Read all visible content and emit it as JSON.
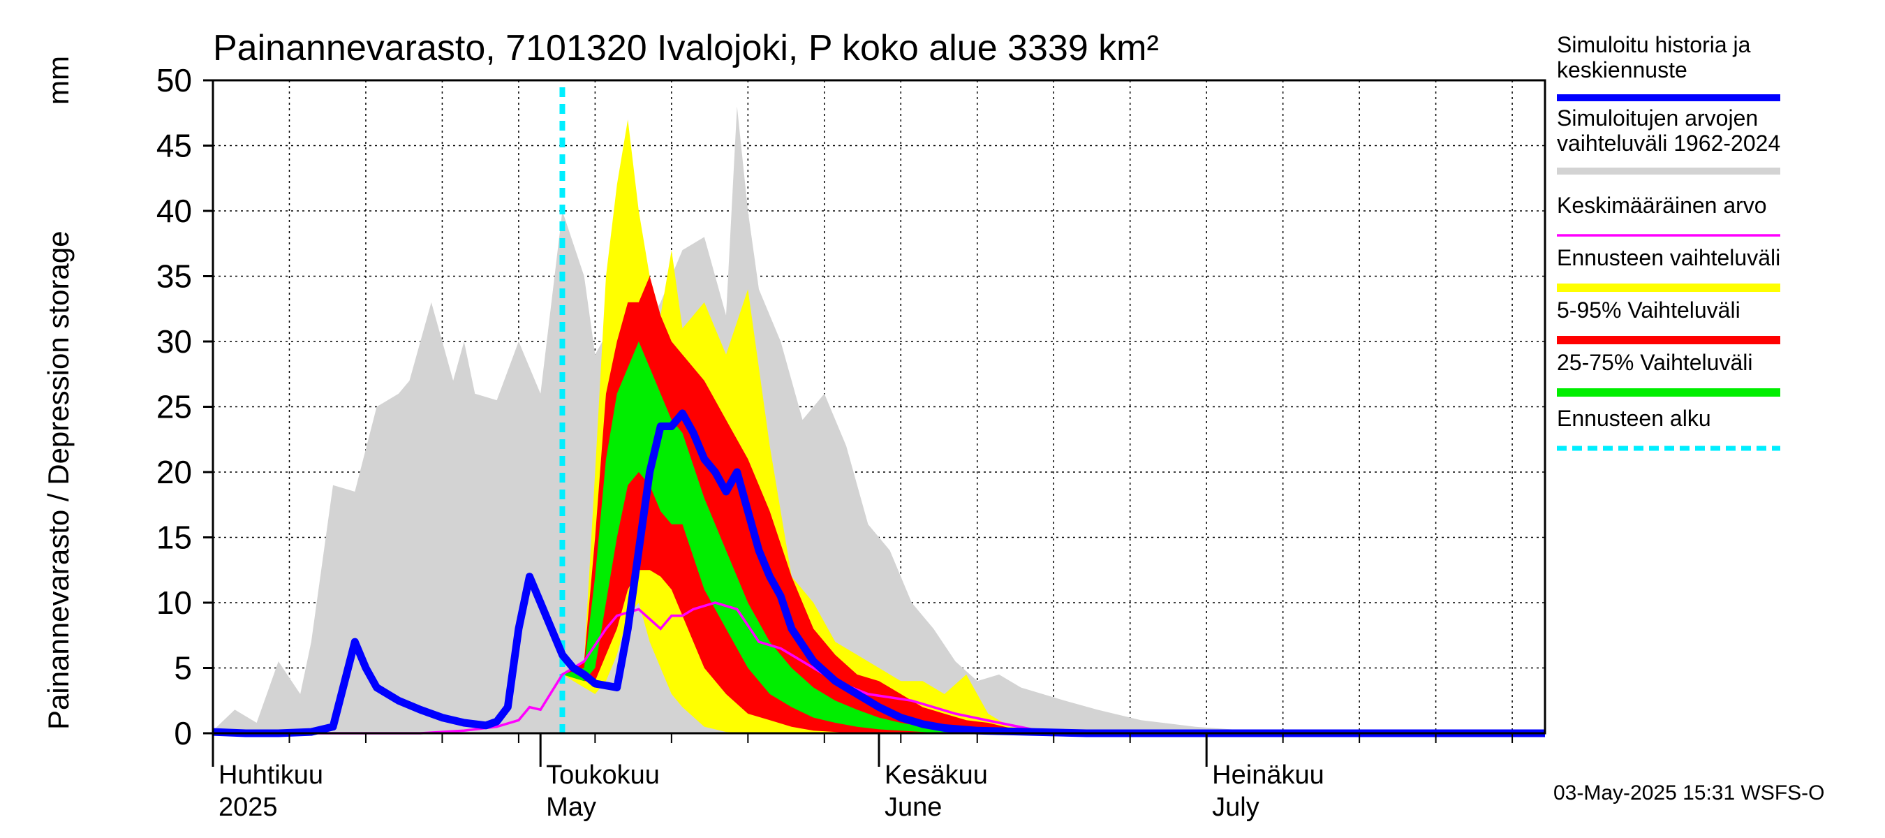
{
  "chart_data": {
    "type": "area",
    "title": "Painannevarasto, 7101320 Ivalojoki, P koko alue 3339 km²",
    "ylabel": "Painannevarasto / Depression storage",
    "yunit": "mm",
    "ylim": [
      0,
      50
    ],
    "yticks": [
      "0",
      "5",
      "10",
      "15",
      "20",
      "25",
      "30",
      "35",
      "40",
      "45",
      "50"
    ],
    "xlim": [
      "2025-04-01",
      "2025-08-01"
    ],
    "grid": true,
    "month_labels": [
      {
        "date": "2025-04-01",
        "line1": "Huhtikuu",
        "line2": "2025"
      },
      {
        "date": "2025-05-01",
        "line1": "Toukokuu",
        "line2": "May"
      },
      {
        "date": "2025-06-01",
        "line1": "Kesäkuu",
        "line2": "June"
      },
      {
        "date": "2025-07-01",
        "line1": "Heinäkuu",
        "line2": "July"
      }
    ],
    "forecast_start": "2025-05-03",
    "historical_range": {
      "x": [
        "2025-04-01",
        "2025-04-03",
        "2025-04-05",
        "2025-04-07",
        "2025-04-09",
        "2025-04-10",
        "2025-04-12",
        "2025-04-14",
        "2025-04-16",
        "2025-04-18",
        "2025-04-19",
        "2025-04-21",
        "2025-04-23",
        "2025-04-24",
        "2025-04-25",
        "2025-04-27",
        "2025-04-29",
        "2025-05-01",
        "2025-05-03",
        "2025-05-05",
        "2025-05-06",
        "2025-05-08",
        "2025-05-10",
        "2025-05-12",
        "2025-05-14",
        "2025-05-16",
        "2025-05-18",
        "2025-05-19",
        "2025-05-20",
        "2025-05-21",
        "2025-05-23",
        "2025-05-24",
        "2025-05-25",
        "2025-05-27",
        "2025-05-29",
        "2025-05-31",
        "2025-06-02",
        "2025-06-04",
        "2025-06-06",
        "2025-06-08",
        "2025-06-10",
        "2025-06-12",
        "2025-06-14",
        "2025-06-16",
        "2025-06-18",
        "2025-06-21",
        "2025-06-25",
        "2025-06-30",
        "2025-07-05",
        "2025-07-10",
        "2025-08-01"
      ],
      "high": [
        0.2,
        1.8,
        0.8,
        5.5,
        3.0,
        7.0,
        19.0,
        18.5,
        25.0,
        26.0,
        27.0,
        33.0,
        27.0,
        30.0,
        26.0,
        25.5,
        30.0,
        26.0,
        40.0,
        35.0,
        29.0,
        32.0,
        30.0,
        33.0,
        37.0,
        38.0,
        32.0,
        48.0,
        40.0,
        34.0,
        30.0,
        27.0,
        24.0,
        26.0,
        22.0,
        16.0,
        14.0,
        10.0,
        8.0,
        5.5,
        4.0,
        4.5,
        3.5,
        3.0,
        2.5,
        1.8,
        1.0,
        0.5,
        0.2,
        0.1,
        0.0
      ],
      "low": [
        0,
        0,
        0,
        0,
        0,
        0,
        0,
        0,
        0,
        0,
        0,
        0,
        0,
        0,
        0,
        0,
        0,
        0,
        0,
        0,
        0,
        0,
        0,
        0,
        0,
        0,
        0,
        0,
        0,
        0,
        0,
        0,
        0,
        0,
        0,
        0,
        0,
        0,
        0,
        0,
        0,
        0,
        0,
        0,
        0,
        0,
        0,
        0,
        0,
        0,
        0
      ]
    },
    "forecast_bands": {
      "x": [
        "2025-05-03",
        "2025-05-05",
        "2025-05-06",
        "2025-05-07",
        "2025-05-08",
        "2025-05-09",
        "2025-05-10",
        "2025-05-11",
        "2025-05-12",
        "2025-05-13",
        "2025-05-14",
        "2025-05-16",
        "2025-05-18",
        "2025-05-20",
        "2025-05-22",
        "2025-05-24",
        "2025-05-26",
        "2025-05-28",
        "2025-05-30",
        "2025-06-01",
        "2025-06-03",
        "2025-06-05",
        "2025-06-07",
        "2025-06-09",
        "2025-06-11",
        "2025-06-13",
        "2025-06-15",
        "2025-06-20",
        "2025-06-30",
        "2025-08-01"
      ],
      "band_min_max": {
        "upper": [
          4.5,
          5.5,
          20.0,
          35.0,
          42.0,
          47.0,
          40.0,
          35.0,
          32.0,
          37.0,
          31.0,
          33.0,
          29.0,
          34.0,
          22.0,
          12.0,
          10.0,
          7.0,
          6.0,
          5.0,
          4.0,
          4.0,
          3.0,
          4.5,
          1.5,
          0.5,
          0.3,
          0.1,
          0.0,
          0.0
        ],
        "lower": [
          4.5,
          3.5,
          3.0,
          4.0,
          6.0,
          9.0,
          10.0,
          7.0,
          5.0,
          3.0,
          2.0,
          0.5,
          0.1,
          0,
          0,
          0,
          0,
          0,
          0,
          0,
          0,
          0,
          0,
          0,
          0,
          0,
          0,
          0,
          0,
          0
        ]
      },
      "band_5_95": {
        "upper": [
          4.5,
          5.5,
          15.0,
          26.0,
          30.0,
          33.0,
          33.0,
          35.0,
          32.0,
          30.0,
          29.0,
          27.0,
          24.0,
          21.0,
          17.0,
          12.0,
          8.0,
          6.0,
          4.5,
          4.0,
          3.0,
          2.0,
          1.5,
          1.0,
          0.8,
          0.4,
          0.2,
          0.0,
          0.0,
          0.0
        ],
        "lower": [
          4.5,
          4.0,
          4.0,
          6.0,
          8.0,
          11.0,
          12.5,
          12.5,
          12.0,
          11.0,
          9.0,
          5.0,
          3.0,
          1.5,
          1.0,
          0.5,
          0.2,
          0.1,
          0,
          0,
          0,
          0,
          0,
          0,
          0,
          0,
          0,
          0,
          0,
          0
        ]
      },
      "band_25_75": {
        "upper": [
          4.5,
          5.0,
          12.0,
          21.0,
          26.0,
          28.0,
          30.0,
          28.0,
          26.0,
          24.0,
          23.0,
          18.0,
          14.0,
          10.0,
          7.0,
          5.0,
          3.5,
          2.5,
          1.8,
          1.2,
          0.8,
          0.5,
          0.2,
          0.1,
          0,
          0,
          0,
          0,
          0,
          0
        ],
        "lower": [
          4.5,
          4.0,
          5.0,
          10.0,
          15.0,
          19.0,
          20.0,
          19.0,
          17.0,
          16.0,
          16.0,
          11.0,
          8.0,
          5.0,
          3.0,
          2.0,
          1.2,
          0.8,
          0.5,
          0.3,
          0.2,
          0.1,
          0,
          0,
          0,
          0,
          0,
          0,
          0,
          0
        ]
      }
    },
    "series": [
      {
        "name": "Simuloitu historia ja keskiennuste",
        "color": "#0000ff",
        "x": [
          "2025-04-01",
          "2025-04-04",
          "2025-04-07",
          "2025-04-10",
          "2025-04-12",
          "2025-04-14",
          "2025-04-15",
          "2025-04-16",
          "2025-04-18",
          "2025-04-20",
          "2025-04-22",
          "2025-04-24",
          "2025-04-26",
          "2025-04-27",
          "2025-04-28",
          "2025-04-29",
          "2025-04-30",
          "2025-05-01",
          "2025-05-03",
          "2025-05-04",
          "2025-05-05",
          "2025-05-06",
          "2025-05-08",
          "2025-05-09",
          "2025-05-10",
          "2025-05-11",
          "2025-05-12",
          "2025-05-13",
          "2025-05-14",
          "2025-05-15",
          "2025-05-16",
          "2025-05-17",
          "2025-05-18",
          "2025-05-19",
          "2025-05-20",
          "2025-05-21",
          "2025-05-22",
          "2025-05-23",
          "2025-05-24",
          "2025-05-26",
          "2025-05-28",
          "2025-05-30",
          "2025-06-01",
          "2025-06-03",
          "2025-06-05",
          "2025-06-07",
          "2025-06-10",
          "2025-06-15",
          "2025-06-20",
          "2025-08-01"
        ],
        "y": [
          0.1,
          0.0,
          0.0,
          0.1,
          0.5,
          7.0,
          5.0,
          3.5,
          2.5,
          1.8,
          1.2,
          0.8,
          0.6,
          0.9,
          2.0,
          8.0,
          12.0,
          10.0,
          6.0,
          5.0,
          4.5,
          3.8,
          3.5,
          8.0,
          14.0,
          20.0,
          23.5,
          23.5,
          24.5,
          23.0,
          21.0,
          20.0,
          18.5,
          20.0,
          17.0,
          14.0,
          12.0,
          10.5,
          8.0,
          5.5,
          4.0,
          3.0,
          2.0,
          1.2,
          0.7,
          0.4,
          0.2,
          0.1,
          0.0,
          0.0
        ]
      },
      {
        "name": "Keskimääräinen arvo",
        "color": "#ff00ff",
        "x": [
          "2025-04-01",
          "2025-04-15",
          "2025-04-20",
          "2025-04-24",
          "2025-04-27",
          "2025-04-29",
          "2025-04-30",
          "2025-05-01",
          "2025-05-03",
          "2025-05-05",
          "2025-05-07",
          "2025-05-08",
          "2025-05-10",
          "2025-05-12",
          "2025-05-13",
          "2025-05-14",
          "2025-05-15",
          "2025-05-17",
          "2025-05-19",
          "2025-05-21",
          "2025-05-23",
          "2025-05-25",
          "2025-05-28",
          "2025-05-31",
          "2025-06-04",
          "2025-06-08",
          "2025-06-12",
          "2025-06-15",
          "2025-06-20",
          "2025-08-01"
        ],
        "y": [
          0.0,
          0.0,
          0.0,
          0.2,
          0.5,
          1.0,
          2.0,
          1.8,
          4.5,
          5.5,
          8.0,
          9.0,
          9.5,
          8.0,
          9.0,
          9.0,
          9.5,
          10.0,
          9.5,
          7.0,
          6.5,
          5.5,
          4.0,
          3.0,
          2.5,
          1.5,
          0.8,
          0.3,
          0.0,
          0.0
        ]
      }
    ],
    "legend_position": "right",
    "legend": [
      {
        "label": "Simuloitu historia ja keskiennuste",
        "color": "#0000ff",
        "style": "line"
      },
      {
        "label": "Simuloitujen arvojen vaihteluväli 1962-2024",
        "color": "#d3d3d3",
        "style": "line"
      },
      {
        "label": "Keskimääräinen arvo",
        "color": "#ff00ff",
        "style": "thin"
      },
      {
        "label": "Ennusteen vaihteluväli",
        "color": "#ffff00",
        "style": "line"
      },
      {
        "label": "5-95% Vaihteluväli",
        "color": "#ff0000",
        "style": "line"
      },
      {
        "label": "25-75% Vaihteluväli",
        "color": "#00ee00",
        "style": "line"
      },
      {
        "label": "Ennusteen alku",
        "color": "#00eeff",
        "style": "dashed"
      }
    ],
    "timestamp": "03-May-2025 15:31 WSFS-O"
  }
}
